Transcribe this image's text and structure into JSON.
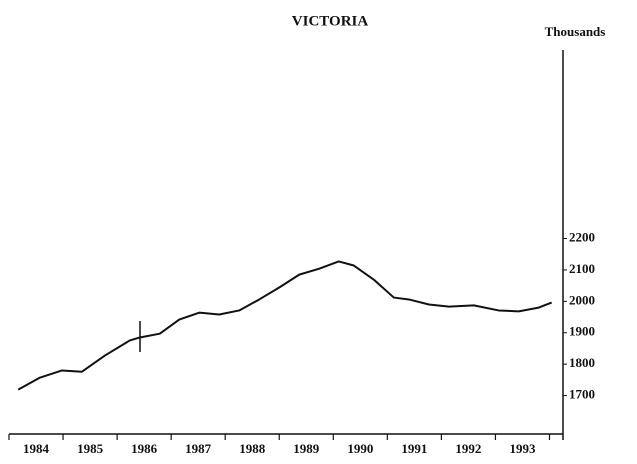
{
  "chart_data": {
    "type": "line",
    "title": "VICTORIA",
    "y_label": "Thousands",
    "x": [
      1984.17,
      1984.57,
      1984.98,
      1985.35,
      1985.77,
      1986.23,
      1986.42,
      1986.79,
      1987.15,
      1987.52,
      1987.89,
      1988.26,
      1988.63,
      1989.0,
      1989.37,
      1989.74,
      1990.1,
      1990.38,
      1990.75,
      1991.12,
      1991.4,
      1991.77,
      1992.14,
      1992.6,
      1993.06,
      1993.43,
      1993.8,
      1994.04
    ],
    "series": [
      {
        "name": "Victoria",
        "color": "#111111",
        "values": [
          1719,
          1757,
          1780,
          1776,
          1827,
          1875,
          1885,
          1897,
          1942,
          1964,
          1958,
          1971,
          2006,
          2044,
          2085,
          2104,
          2127,
          2114,
          2069,
          2012,
          2006,
          1990,
          1983,
          1987,
          1971,
          1968,
          1980,
          1996
        ]
      }
    ],
    "xlim": [
      1984,
      1994.25
    ],
    "xticks": [
      {
        "value": 1984.5,
        "label": "1984"
      },
      {
        "value": 1985.5,
        "label": "1985"
      },
      {
        "value": 1986.5,
        "label": "1986"
      },
      {
        "value": 1987.5,
        "label": "1987"
      },
      {
        "value": 1988.5,
        "label": "1988"
      },
      {
        "value": 1989.5,
        "label": "1989"
      },
      {
        "value": 1990.5,
        "label": "1990"
      },
      {
        "value": 1991.5,
        "label": "1991"
      },
      {
        "value": 1992.5,
        "label": "1992"
      },
      {
        "value": 1993.5,
        "label": "1993"
      }
    ],
    "ylim": [
      1600,
      2800
    ],
    "yticks": [
      1700,
      1800,
      1900,
      2000,
      2100,
      2200
    ],
    "y_axis_side": "right",
    "grid": false
  }
}
